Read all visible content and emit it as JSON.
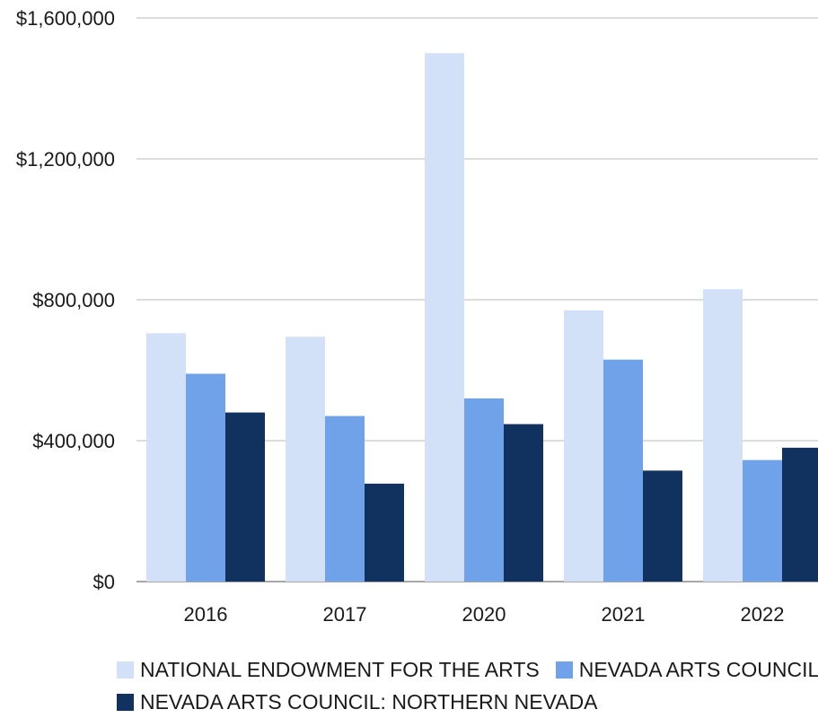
{
  "chart_data": {
    "type": "bar",
    "categories": [
      "2016",
      "2017",
      "2020",
      "2021",
      "2022"
    ],
    "series": [
      {
        "name": "NATIONAL ENDOWMENT FOR THE ARTS",
        "color": "#d2e1f8",
        "values": [
          705000,
          695000,
          1500000,
          770000,
          830000
        ]
      },
      {
        "name": "NEVADA ARTS COUNCIL",
        "color": "#6fa2e8",
        "values": [
          590000,
          470000,
          520000,
          630000,
          345000
        ]
      },
      {
        "name": "NEVADA ARTS COUNCIL: NORTHERN NEVADA",
        "color": "#11315f",
        "values": [
          480000,
          278000,
          447000,
          315000,
          380000
        ]
      }
    ],
    "yticks": [
      {
        "value": 0,
        "label": "$0"
      },
      {
        "value": 400000,
        "label": "$400,000"
      },
      {
        "value": 800000,
        "label": "$800,000"
      },
      {
        "value": 1200000,
        "label": "$1,200,000"
      },
      {
        "value": 1600000,
        "label": "$1,600,000"
      }
    ],
    "ylim": [
      0,
      1600000
    ],
    "grid": true,
    "legend_position": "bottom",
    "title": "",
    "xlabel": "",
    "ylabel": ""
  }
}
